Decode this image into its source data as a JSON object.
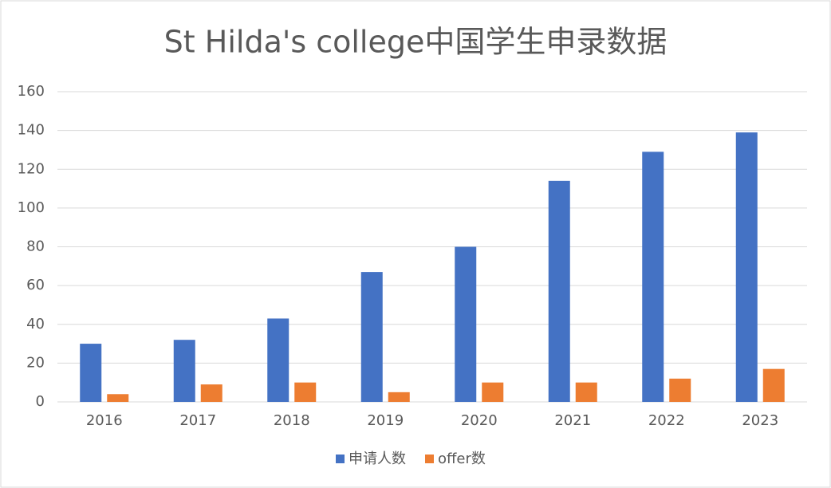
{
  "chart_data": {
    "type": "bar",
    "title": "St Hilda's college中国学生申录数据",
    "categories": [
      "2016",
      "2017",
      "2018",
      "2019",
      "2020",
      "2021",
      "2022",
      "2023"
    ],
    "series": [
      {
        "name": "申请人数",
        "color": "#4472c4",
        "values": [
          30,
          32,
          43,
          67,
          80,
          114,
          129,
          139
        ]
      },
      {
        "name": "offer数",
        "color": "#ed7d31",
        "values": [
          4,
          9,
          10,
          5,
          10,
          10,
          12,
          17
        ]
      }
    ],
    "ylim": [
      0,
      160
    ],
    "yticks": [
      0,
      20,
      40,
      60,
      80,
      100,
      120,
      140,
      160
    ],
    "grid": true,
    "legend": "bottom"
  }
}
